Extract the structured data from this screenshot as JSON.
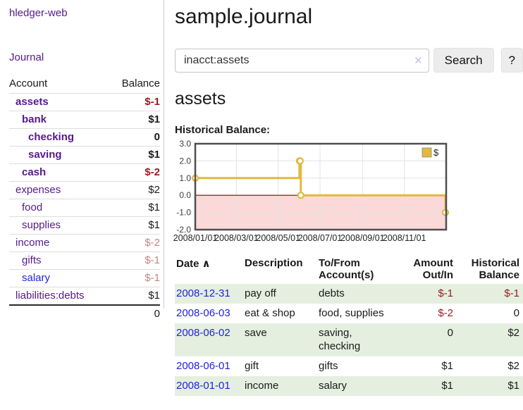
{
  "app": {
    "title": "hledger-web",
    "nav_journal": "Journal"
  },
  "sidebar": {
    "account_header": "Account",
    "balance_header": "Balance",
    "accounts": [
      {
        "name": "assets",
        "balance": "$-1"
      },
      {
        "name": "bank",
        "balance": "$1"
      },
      {
        "name": "checking",
        "balance": "0"
      },
      {
        "name": "saving",
        "balance": "$1"
      },
      {
        "name": "cash",
        "balance": "$-2"
      },
      {
        "name": "expenses",
        "balance": "$2"
      },
      {
        "name": "food",
        "balance": "$1"
      },
      {
        "name": "supplies",
        "balance": "$1"
      },
      {
        "name": "income",
        "balance": "$-2"
      },
      {
        "name": "gifts",
        "balance": "$-1"
      },
      {
        "name": "salary",
        "balance": "$-1"
      },
      {
        "name": "liabilities:debts",
        "balance": "$1"
      }
    ],
    "total": "0"
  },
  "main": {
    "title": "sample.journal",
    "search": {
      "value": "inacct:assets",
      "clear_icon": "✕",
      "search_button": "Search",
      "help_button": "?"
    },
    "account_heading": "assets",
    "chart_title": "Historical Balance:"
  },
  "chart_data": {
    "type": "line",
    "step": true,
    "title": "Historical Balance",
    "series": [
      {
        "name": "$",
        "points": [
          [
            "2008-01-01",
            1
          ],
          [
            "2008-06-01",
            2
          ],
          [
            "2008-06-02",
            2
          ],
          [
            "2008-06-03",
            0
          ],
          [
            "2008-12-31",
            -1
          ]
        ]
      }
    ],
    "x_start": "2008-01-01",
    "x_end": "2009-01-01",
    "x_ticks": [
      {
        "date": "2008-01-01",
        "label": "2008/01/01"
      },
      {
        "date": "2008-03-01",
        "label": "2008/03/01"
      },
      {
        "date": "2008-05-01",
        "label": "2008/05/01"
      },
      {
        "date": "2008-07-01",
        "label": "2008/07/01"
      },
      {
        "date": "2008-09-01",
        "label": "2008/09/01"
      },
      {
        "date": "2008-11-01",
        "label": "2008/11/01"
      }
    ],
    "y_ticks": [
      {
        "value": 3,
        "label": "3.0"
      },
      {
        "value": 2,
        "label": "2.0"
      },
      {
        "value": 1,
        "label": "1.0"
      },
      {
        "value": 0,
        "label": "0.0"
      },
      {
        "value": -1,
        "label": "-1.0"
      },
      {
        "value": -2,
        "label": "-2.0"
      }
    ],
    "ylim": [
      -2,
      3
    ],
    "grid": true,
    "legend": {
      "label": "$",
      "position": "top-right"
    },
    "colors": {
      "line": "#e3b83e",
      "negative_region": "#fbd9d9",
      "zero_line": "#8b0000",
      "grid": "#e3e3e3",
      "border": "#4e4e4e"
    }
  },
  "register": {
    "headers": {
      "date": "Date",
      "sort_icon": "∧",
      "description": "Description",
      "account": "To/From Account(s)",
      "amount": "Amount Out/In",
      "balance": "Historical Balance"
    },
    "rows": [
      {
        "date": "2008-12-31",
        "description": "pay off",
        "accounts": "debts",
        "amount": "$-1",
        "balance": "$-1"
      },
      {
        "date": "2008-06-03",
        "description": "eat & shop",
        "accounts": "food, supplies",
        "amount": "$-2",
        "balance": "0"
      },
      {
        "date": "2008-06-02",
        "description": "save",
        "accounts": "saving, checking",
        "amount": "0",
        "balance": "$2"
      },
      {
        "date": "2008-06-01",
        "description": "gift",
        "accounts": "gifts",
        "amount": "$1",
        "balance": "$2"
      },
      {
        "date": "2008-01-01",
        "description": "income",
        "accounts": "salary",
        "amount": "$1",
        "balance": "$1"
      }
    ]
  }
}
